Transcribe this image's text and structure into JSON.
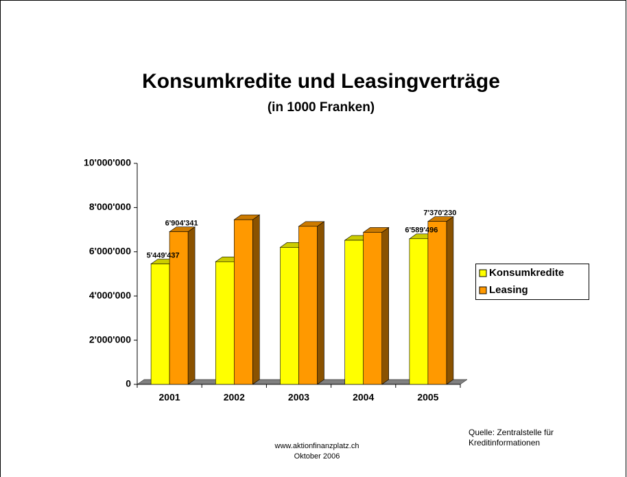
{
  "chart_data": {
    "type": "bar3d",
    "title": "Konsumkredite und Leasingverträge",
    "subtitle": "(in 1000 Franken)",
    "categories": [
      "2001",
      "2002",
      "2003",
      "2004",
      "2005"
    ],
    "series": [
      {
        "name": "Konsumkredite",
        "color": "#ffff00",
        "side_color": "#999900",
        "top_color": "#cccc00",
        "values": [
          5449437,
          5550000,
          6200000,
          6520000,
          6589496
        ],
        "value_labels": [
          "5'449'437",
          null,
          null,
          null,
          "6'589'496"
        ]
      },
      {
        "name": "Leasing",
        "color": "#ff9900",
        "side_color": "#8a5200",
        "top_color": "#cc7a00",
        "values": [
          6904341,
          7450000,
          7150000,
          6880000,
          7370230
        ],
        "value_labels": [
          "6'904'341",
          null,
          null,
          null,
          "7'370'230"
        ]
      }
    ],
    "ylim": [
      0,
      10000000
    ],
    "yticks": [
      0,
      {
        "value": 2000000,
        "label": "2'000'000"
      },
      {
        "value": 4000000,
        "label": "4'000'000"
      },
      {
        "value": 6000000,
        "label": "6'000'000"
      },
      {
        "value": 8000000,
        "label": "8'000'000"
      },
      {
        "value": 10000000,
        "label": "10'000'000"
      }
    ],
    "grid": false,
    "legend": "right",
    "footer": [
      "www.aktionfinanzplatz.ch",
      "Oktober 2006"
    ],
    "source": [
      "Quelle: Zentralstelle für",
      "Kreditinformationen"
    ]
  }
}
